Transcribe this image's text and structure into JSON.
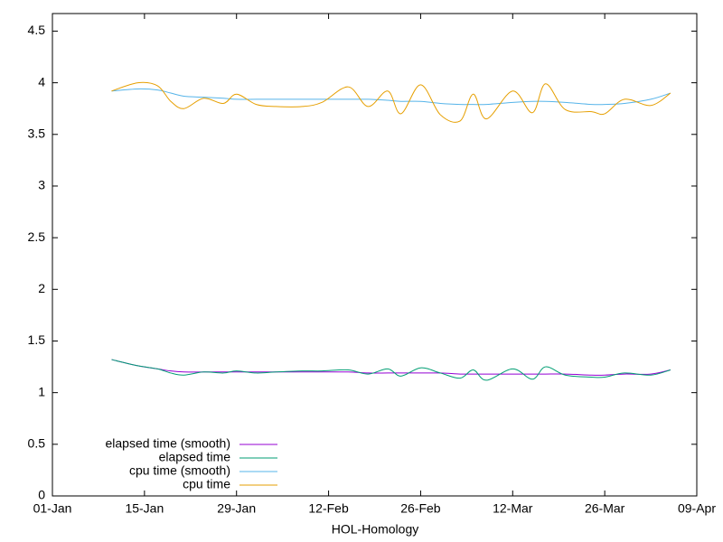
{
  "chart_data": {
    "type": "line",
    "xlabel": "HOL-Homology",
    "x": [
      "10-Jan",
      "14-Jan",
      "17-Jan",
      "19-Jan",
      "21-Jan",
      "24-Jan",
      "27-Jan",
      "29-Jan",
      "01-Feb",
      "04-Feb",
      "08-Feb",
      "11-Feb",
      "15-Feb",
      "18-Feb",
      "21-Feb",
      "23-Feb",
      "26-Feb",
      "01-Mar",
      "04-Mar",
      "06-Mar",
      "08-Mar",
      "12-Mar",
      "15-Mar",
      "17-Mar",
      "20-Mar",
      "24-Mar",
      "26-Mar",
      "29-Mar",
      "02-Apr",
      "05-Apr"
    ],
    "series": [
      {
        "name": "elapsed time (smooth)",
        "color": "#9400d3",
        "values": [
          1.32,
          1.26,
          1.23,
          1.21,
          1.2,
          1.2,
          1.2,
          1.2,
          1.2,
          1.2,
          1.2,
          1.2,
          1.2,
          1.19,
          1.19,
          1.19,
          1.19,
          1.19,
          1.18,
          1.18,
          1.18,
          1.18,
          1.18,
          1.18,
          1.18,
          1.17,
          1.17,
          1.18,
          1.18,
          1.22
        ]
      },
      {
        "name": "elapsed time",
        "color": "#009e73",
        "values": [
          1.32,
          1.26,
          1.23,
          1.19,
          1.17,
          1.2,
          1.19,
          1.21,
          1.19,
          1.2,
          1.21,
          1.21,
          1.22,
          1.18,
          1.23,
          1.16,
          1.24,
          1.19,
          1.14,
          1.22,
          1.12,
          1.23,
          1.13,
          1.25,
          1.17,
          1.15,
          1.15,
          1.19,
          1.17,
          1.22
        ]
      },
      {
        "name": "cpu time (smooth)",
        "color": "#56b4e9",
        "values": [
          3.92,
          3.94,
          3.93,
          3.9,
          3.87,
          3.86,
          3.85,
          3.84,
          3.84,
          3.84,
          3.84,
          3.84,
          3.84,
          3.84,
          3.83,
          3.82,
          3.82,
          3.8,
          3.79,
          3.79,
          3.79,
          3.81,
          3.82,
          3.82,
          3.81,
          3.79,
          3.79,
          3.8,
          3.84,
          3.9
        ]
      },
      {
        "name": "cpu time",
        "color": "#e69f00",
        "values": [
          3.92,
          4.0,
          3.97,
          3.82,
          3.75,
          3.85,
          3.8,
          3.89,
          3.79,
          3.77,
          3.77,
          3.81,
          3.96,
          3.77,
          3.92,
          3.7,
          3.98,
          3.69,
          3.63,
          3.89,
          3.65,
          3.92,
          3.71,
          3.99,
          3.74,
          3.72,
          3.7,
          3.84,
          3.78,
          3.9
        ]
      }
    ],
    "xlim": [
      "01-Jan",
      "09-Apr"
    ],
    "xticks": [
      "01-Jan",
      "15-Jan",
      "29-Jan",
      "12-Feb",
      "26-Feb",
      "12-Mar",
      "26-Mar",
      "09-Apr"
    ],
    "ylim": [
      0,
      4.67
    ],
    "yticks": [
      0,
      0.5,
      1,
      1.5,
      2,
      2.5,
      3,
      3.5,
      4,
      4.5
    ],
    "grid": false,
    "legend": "lower left"
  }
}
